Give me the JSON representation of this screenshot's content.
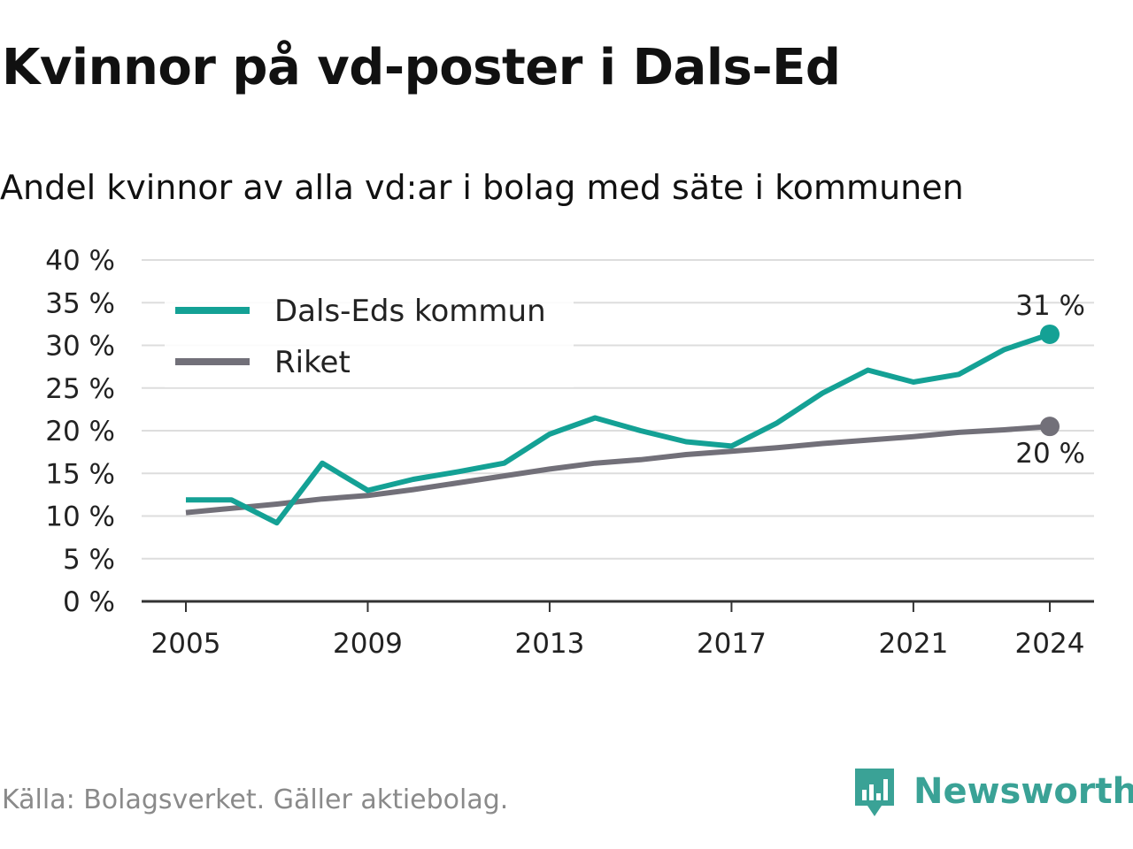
{
  "title": "Kvinnor på vd-poster i Dals-Ed",
  "subtitle": "Andel kvinnor av alla vd:ar i bolag med säte i kommunen",
  "footer": "Källa: Bolagsverket. Gäller aktiebolag.",
  "brand": "Newsworthy",
  "colors": {
    "dals_ed": "#14a195",
    "riket": "#727079",
    "grid": "#dddddd",
    "axis": "#333333",
    "brand": "#3aa296"
  },
  "chart_data": {
    "type": "line",
    "ylim": [
      0,
      40
    ],
    "xlim": [
      2005,
      2024
    ],
    "yticks": [
      {
        "value": 0,
        "label": "0 %"
      },
      {
        "value": 5,
        "label": "5 %"
      },
      {
        "value": 10,
        "label": "10 %"
      },
      {
        "value": 15,
        "label": "15 %"
      },
      {
        "value": 20,
        "label": "20 %"
      },
      {
        "value": 25,
        "label": "25 %"
      },
      {
        "value": 30,
        "label": "30 %"
      },
      {
        "value": 35,
        "label": "35 %"
      },
      {
        "value": 40,
        "label": "40 %"
      }
    ],
    "xticks": [
      {
        "value": 2005,
        "label": "2005"
      },
      {
        "value": 2009,
        "label": "2009"
      },
      {
        "value": 2013,
        "label": "2013"
      },
      {
        "value": 2017,
        "label": "2017"
      },
      {
        "value": 2021,
        "label": "2021"
      },
      {
        "value": 2024,
        "label": "2024"
      }
    ],
    "grid": true,
    "legend_position": "top-left",
    "x": [
      2005,
      2006,
      2007,
      2008,
      2009,
      2010,
      2011,
      2012,
      2013,
      2014,
      2015,
      2016,
      2017,
      2018,
      2019,
      2020,
      2021,
      2022,
      2023,
      2024
    ],
    "series": [
      {
        "name": "Dals-Eds kommun",
        "color_key": "dals_ed",
        "values": [
          11.9,
          11.9,
          9.2,
          16.2,
          13.0,
          14.3,
          15.2,
          16.2,
          19.6,
          21.5,
          20.0,
          18.7,
          18.2,
          20.9,
          24.4,
          27.1,
          25.7,
          26.6,
          29.5,
          31.3
        ],
        "end_label": "31 %"
      },
      {
        "name": "Riket",
        "color_key": "riket",
        "values": [
          10.4,
          10.9,
          11.4,
          12.0,
          12.4,
          13.1,
          13.9,
          14.7,
          15.5,
          16.2,
          16.6,
          17.2,
          17.6,
          18.0,
          18.5,
          18.9,
          19.3,
          19.8,
          20.1,
          20.5
        ],
        "end_label": "20 %"
      }
    ]
  }
}
